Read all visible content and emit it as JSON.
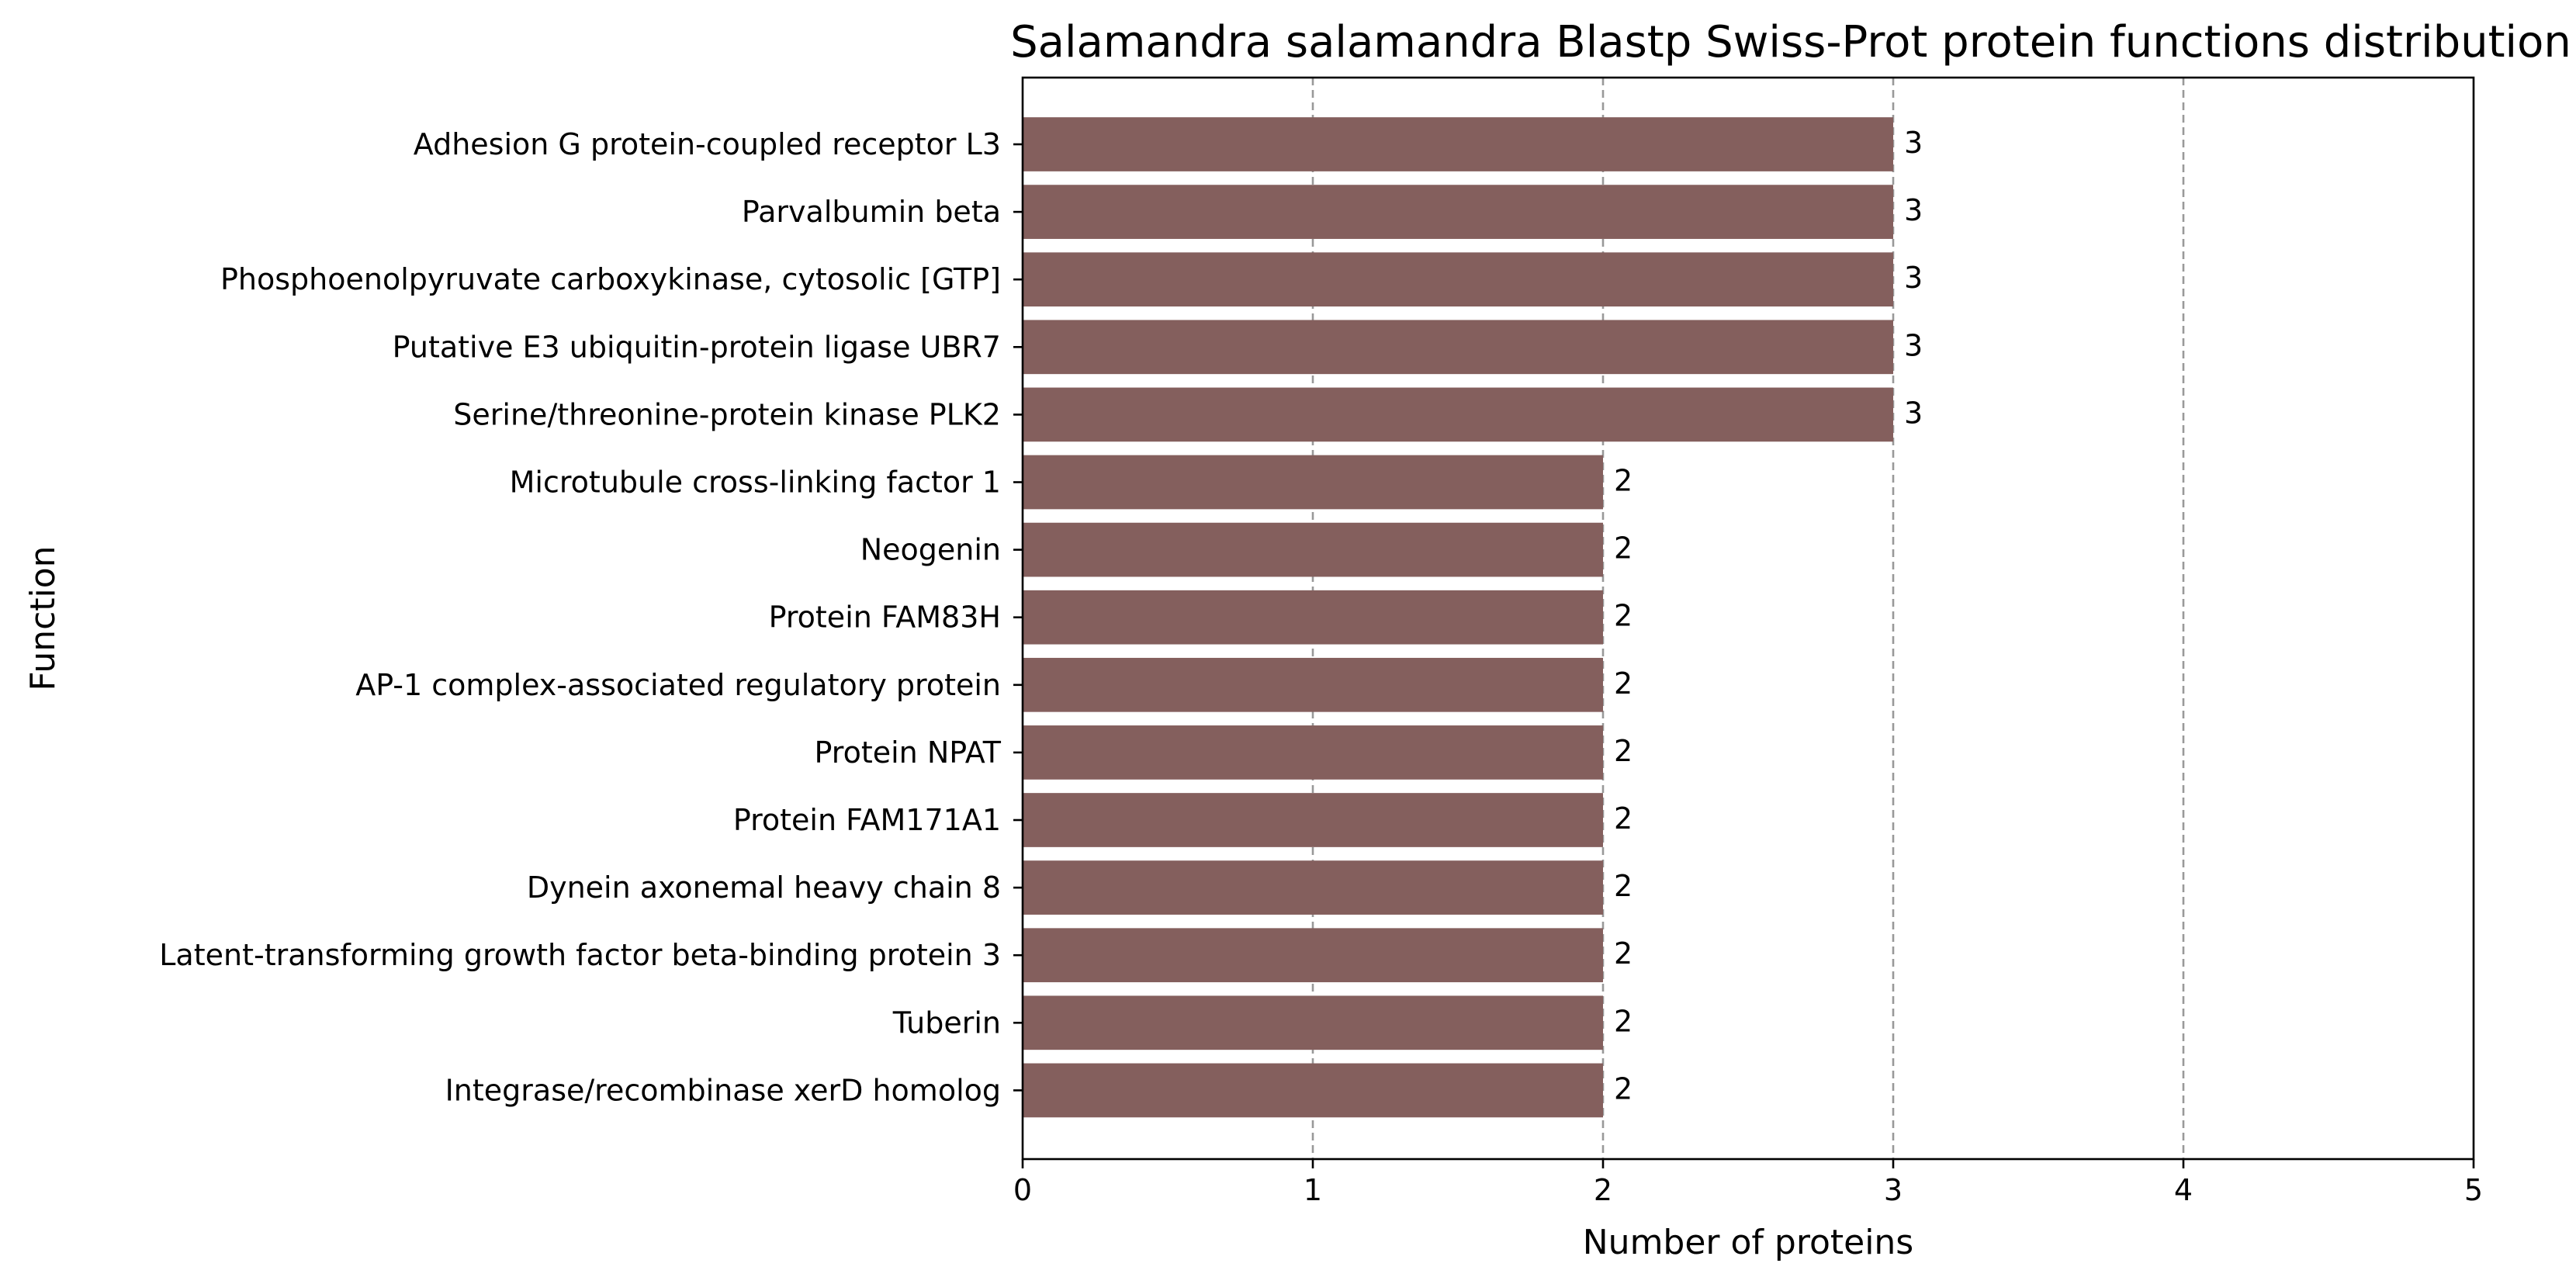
{
  "chart_data": {
    "type": "bar",
    "orientation": "horizontal",
    "title": "Salamandra salamandra Blastp Swiss-Prot protein functions distribution",
    "xlabel": "Number of proteins",
    "ylabel": "Function",
    "xlim": [
      0,
      5
    ],
    "xticks": [
      "0",
      "1",
      "2",
      "3",
      "4",
      "5"
    ],
    "grid": "x-axis, dashed",
    "bar_color": "#845f5d",
    "categories": [
      "Adhesion G protein-coupled receptor L3",
      "Parvalbumin beta",
      "Phosphoenolpyruvate carboxykinase, cytosolic [GTP]",
      "Putative E3 ubiquitin-protein ligase UBR7",
      "Serine/threonine-protein kinase PLK2",
      "Microtubule cross-linking factor 1",
      "Neogenin",
      "Protein FAM83H",
      "AP-1 complex-associated regulatory protein",
      "Protein NPAT",
      "Protein FAM171A1",
      "Dynein axonemal heavy chain 8",
      "Latent-transforming growth factor beta-binding protein 3",
      "Tuberin",
      "Integrase/recombinase xerD homolog"
    ],
    "values": [
      3,
      3,
      3,
      3,
      3,
      2,
      2,
      2,
      2,
      2,
      2,
      2,
      2,
      2,
      2
    ]
  }
}
